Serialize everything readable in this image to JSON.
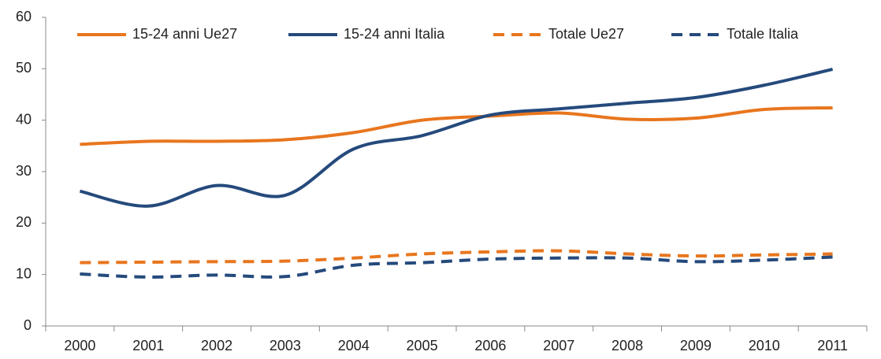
{
  "chart_data": {
    "type": "line",
    "categories": [
      "2000",
      "2001",
      "2002",
      "2003",
      "2004",
      "2005",
      "2006",
      "2007",
      "2008",
      "2009",
      "2010",
      "2011"
    ],
    "series": [
      {
        "name": "15-24 anni Ue27",
        "color": "#e8761e",
        "dashed": false,
        "values": [
          35.3,
          35.9,
          35.9,
          36.2,
          37.6,
          40.0,
          40.8,
          41.4,
          40.2,
          40.4,
          42.1,
          42.4
        ]
      },
      {
        "name": "15-24 anni Italia",
        "color": "#254a7c",
        "dashed": false,
        "values": [
          26.2,
          23.3,
          27.3,
          25.4,
          34.4,
          37.0,
          41.0,
          42.2,
          43.3,
          44.4,
          46.8,
          49.9
        ]
      },
      {
        "name": "Totale Ue27",
        "color": "#e8761e",
        "dashed": true,
        "values": [
          12.3,
          12.4,
          12.5,
          12.6,
          13.2,
          14.0,
          14.4,
          14.6,
          14.0,
          13.6,
          13.8,
          14.0
        ]
      },
      {
        "name": "Totale Italia",
        "color": "#254a7c",
        "dashed": true,
        "values": [
          10.1,
          9.5,
          9.9,
          9.6,
          11.8,
          12.3,
          13.0,
          13.2,
          13.2,
          12.5,
          12.8,
          13.4
        ]
      }
    ],
    "ylim": [
      0,
      60
    ],
    "yticks": [
      0,
      10,
      20,
      30,
      40,
      50,
      60
    ],
    "grid": false,
    "legend": "top"
  }
}
